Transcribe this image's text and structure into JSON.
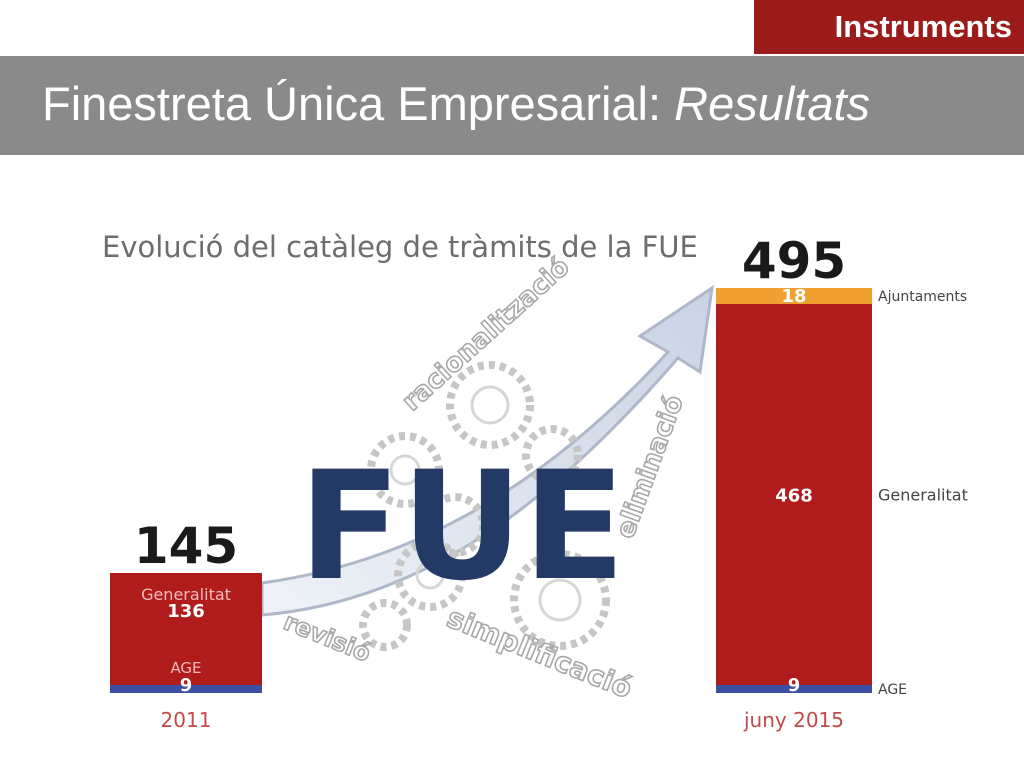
{
  "header": {
    "section_tag": "Instruments",
    "title_main": "Finestreta Única Empresarial: ",
    "title_italic": "Resultats"
  },
  "colors": {
    "tag_bg": "#9b1b1b",
    "title_bg": "#8a8a8a",
    "generalitat": "#b01c1c",
    "ajuntaments": "#f0a030",
    "age": "#3c4fa0",
    "fue_text": "#233a66"
  },
  "chart_data": {
    "type": "bar",
    "stacked": true,
    "title": "Evolució del catàleg de tràmits de la FUE",
    "categories": [
      "2011",
      "juny 2015"
    ],
    "totals": [
      "145",
      "495"
    ],
    "series": [
      {
        "name": "AGE",
        "values": [
          9,
          9
        ]
      },
      {
        "name": "Generalitat",
        "values": [
          136,
          468
        ]
      },
      {
        "name": "Ajuntaments",
        "values": [
          0,
          18
        ]
      }
    ],
    "center_label": "FUE",
    "process_words": [
      "racionalització",
      "eliminació",
      "simplificació",
      "revisió"
    ],
    "ylim": [
      0,
      495
    ],
    "grid": false
  }
}
